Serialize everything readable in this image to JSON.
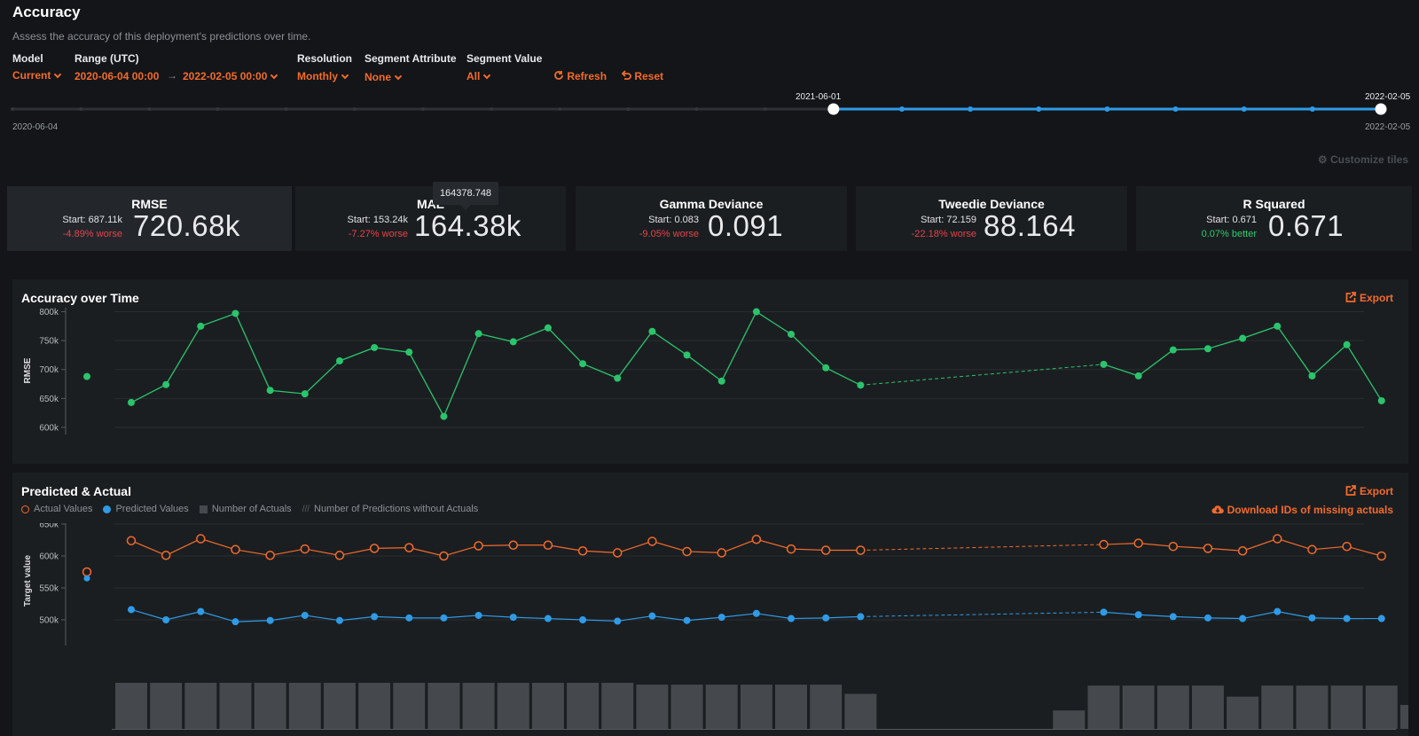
{
  "header": {
    "title": "Accuracy",
    "subtitle": "Assess the accuracy of this deployment's predictions over time."
  },
  "controls": {
    "model_label": "Model",
    "model_value": "Current",
    "range_label": "Range (UTC)",
    "range_start": "2020-06-04  00:00",
    "range_end": "2022-02-05  00:00",
    "resolution_label": "Resolution",
    "resolution_value": "Monthly",
    "segment_attribute_label": "Segment Attribute",
    "segment_attribute_value": "None",
    "segment_value_label": "Segment Value",
    "segment_value_value": "All",
    "refresh_label": "Refresh",
    "reset_label": "Reset"
  },
  "slider": {
    "min_date": "2020-06-04",
    "selected_start": "2021-06-01",
    "selected_end_top": "2022-02-05",
    "max_date": "2022-02-05",
    "tick_count": 21,
    "selected_from_tick": 12,
    "active_color": "#2f9be6"
  },
  "customize_label": "Customize tiles",
  "tooltip": "164378.748",
  "tiles": [
    {
      "name": "RMSE",
      "start": "Start: 687.11k",
      "delta": "-4.89% worse",
      "delta_type": "bad",
      "value": "720.68k",
      "selected": true
    },
    {
      "name": "MAE",
      "start": "Start: 153.24k",
      "delta": "-7.27% worse",
      "delta_type": "bad",
      "value": "164.38k",
      "selected": false
    },
    {
      "name": "Gamma Deviance",
      "start": "Start: 0.083",
      "delta": "-9.05% worse",
      "delta_type": "bad",
      "value": "0.091",
      "selected": false
    },
    {
      "name": "Tweedie Deviance",
      "start": "Start: 72.159",
      "delta": "-22.18% worse",
      "delta_type": "bad",
      "value": "88.164",
      "selected": false
    },
    {
      "name": "R Squared",
      "start": "Start: 0.671",
      "delta": "0.07% better",
      "delta_type": "good",
      "value": "0.671",
      "selected": false
    }
  ],
  "accuracy_panel": {
    "title": "Accuracy over Time",
    "export_label": "Export"
  },
  "predicted_panel": {
    "title": "Predicted & Actual",
    "export_label": "Export",
    "download_label": "Download IDs of missing actuals",
    "legend": {
      "actual": "Actual Values",
      "predicted": "Predicted Values",
      "num_actuals": "Number of Actuals",
      "no_actuals": "Number of Predictions without Actuals"
    }
  },
  "chart_data": [
    {
      "type": "line",
      "ylabel": "RMSE",
      "ylim": [
        580,
        810
      ],
      "y_ticks": [
        600,
        650,
        700,
        750,
        800
      ],
      "y_tick_labels": [
        "600k",
        "650k",
        "700k",
        "750k",
        "800k"
      ],
      "color": "#2bc46c",
      "standalone_point": 688,
      "gap_after_index": 21,
      "series": [
        {
          "values": [
            643,
            674,
            775,
            797,
            664,
            658,
            715,
            738,
            730,
            619,
            762,
            748,
            772,
            710,
            685,
            766,
            725,
            680,
            800,
            761,
            703,
            673,
            709,
            689,
            734,
            736,
            754,
            775,
            689,
            743,
            646
          ]
        }
      ]
    },
    {
      "type": "line",
      "ylabel": "Target value",
      "ylim": [
        460,
        660
      ],
      "y_ticks": [
        500,
        550,
        600,
        650
      ],
      "y_tick_labels": [
        "500k",
        "550k",
        "600k",
        "650k"
      ],
      "gap_after_index": 21,
      "standalone_actual": 575,
      "standalone_predicted": 565,
      "series": [
        {
          "name": "Actual Values",
          "color": "#f26b2d",
          "values": [
            624,
            601,
            627,
            610,
            601,
            611,
            601,
            612,
            613,
            600,
            616,
            617,
            617,
            608,
            605,
            623,
            607,
            605,
            626,
            611,
            609,
            609,
            618,
            620,
            615,
            612,
            608,
            627,
            610,
            615,
            600
          ]
        },
        {
          "name": "Predicted Values",
          "color": "#2f9be6",
          "values": [
            516,
            500,
            513,
            497,
            499,
            507,
            499,
            505,
            503,
            503,
            507,
            504,
            502,
            500,
            498,
            506,
            499,
            504,
            510,
            502,
            503,
            505,
            512,
            508,
            505,
            503,
            502,
            513,
            503,
            502,
            502
          ]
        },
        {
          "name": "Number of Actuals",
          "color": "#45484c",
          "values": [
            100,
            100,
            100,
            100,
            100,
            100,
            100,
            100,
            100,
            100,
            100,
            100,
            100,
            100,
            100,
            96,
            96,
            96,
            96,
            96,
            96,
            76,
            0,
            0,
            0,
            0,
            0,
            40,
            94,
            94,
            94,
            94,
            70,
            94,
            94,
            94,
            94,
            52
          ]
        }
      ]
    }
  ]
}
